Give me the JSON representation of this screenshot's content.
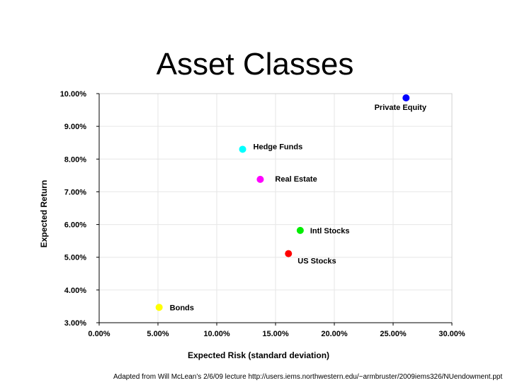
{
  "title": "Asset Classes",
  "footnote": "Adapted from Will McLean’s 2/6/09 lecture http://users.iems.northwestern.edu/~armbruster/2009iems326/NUendowment.ppt",
  "chart_data": {
    "type": "scatter",
    "xlabel": "Expected Risk (standard deviation)",
    "ylabel": "Expected Return",
    "xlim": [
      0,
      30
    ],
    "ylim": [
      3,
      10
    ],
    "grid": true,
    "x_ticks": [
      "0.00%",
      "5.00%",
      "10.00%",
      "15.00%",
      "20.00%",
      "25.00%",
      "30.00%"
    ],
    "y_ticks": [
      "3.00%",
      "4.00%",
      "5.00%",
      "6.00%",
      "7.00%",
      "8.00%",
      "9.00%",
      "10.00%"
    ],
    "points": [
      {
        "label": "Bonds",
        "x": 5.1,
        "y": 3.47,
        "color": "#ffff00"
      },
      {
        "label": "US Stocks",
        "x": 16.1,
        "y": 5.11,
        "color": "#ff0000"
      },
      {
        "label": "Intl Stocks",
        "x": 17.1,
        "y": 5.82,
        "color": "#00ee00"
      },
      {
        "label": "Real Estate",
        "x": 13.7,
        "y": 7.38,
        "color": "#ff00ff"
      },
      {
        "label": "Hedge Funds",
        "x": 12.2,
        "y": 8.3,
        "color": "#00ffff"
      },
      {
        "label": "Private Equity",
        "x": 26.1,
        "y": 9.87,
        "color": "#0000ff"
      }
    ]
  }
}
